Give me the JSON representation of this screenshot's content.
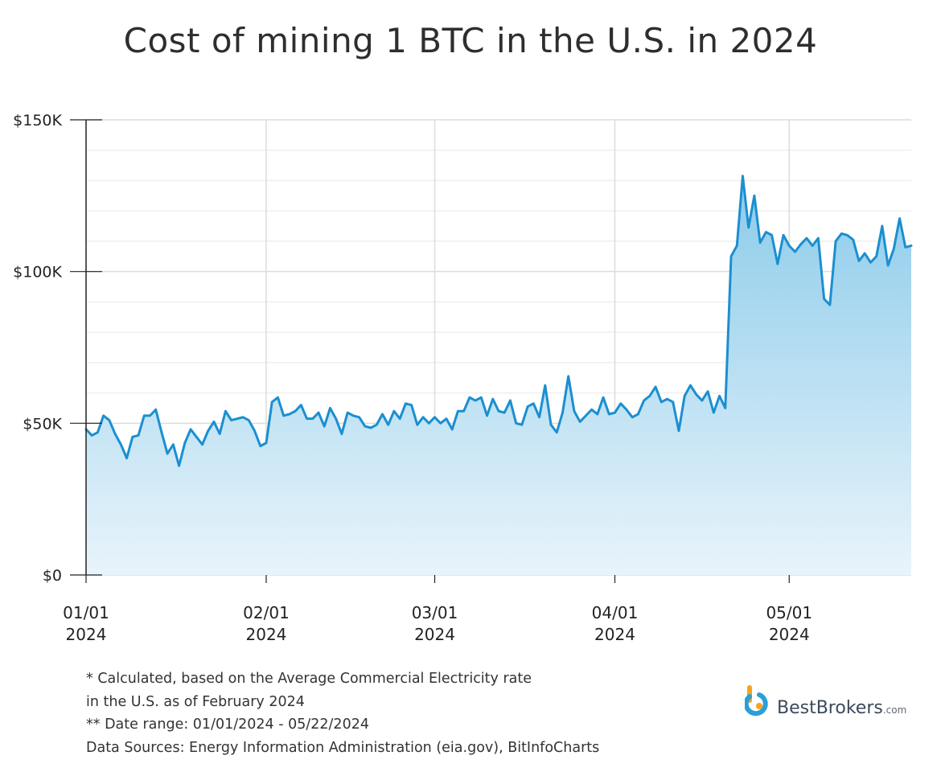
{
  "title": "Cost of mining 1 BTC in the U.S. in 2024",
  "colors": {
    "line": "#1b8fd0",
    "fill_top": "#8ccbea",
    "fill_bottom": "#e8f4fb",
    "grid": "#dcdcdc",
    "axis": "#222222"
  },
  "footnotes": [
    "* Calculated, based on the Average Commercial Electricity rate",
    "in the U.S. as of February 2024",
    "** Date range: 01/01/2024 - 05/22/2024",
    "Data Sources: Energy Information Administration (eia.gov), BitInfoCharts"
  ],
  "brand": {
    "name": "BestBrokers",
    "suffix": ".com",
    "icon": "bestbrokers-logo-icon"
  },
  "chart_data": {
    "type": "area",
    "title": "Cost of mining 1 BTC in the U.S. in 2024",
    "xlabel": "",
    "ylabel": "",
    "ylim": [
      0,
      150000
    ],
    "x_range": [
      "2024-01-01",
      "2024-05-22"
    ],
    "grid": true,
    "y_ticks": [
      {
        "value": 0,
        "label": "$0"
      },
      {
        "value": 50000,
        "label": "$50K"
      },
      {
        "value": 100000,
        "label": "$100K"
      },
      {
        "value": 150000,
        "label": "$150K"
      }
    ],
    "x_ticks": [
      {
        "date": "2024-01-01",
        "line1": "01/01",
        "line2": "2024"
      },
      {
        "date": "2024-02-01",
        "line1": "02/01",
        "line2": "2024"
      },
      {
        "date": "2024-03-01",
        "line1": "03/01",
        "line2": "2024"
      },
      {
        "date": "2024-04-01",
        "line1": "04/01",
        "line2": "2024"
      },
      {
        "date": "2024-05-01",
        "line1": "05/01",
        "line2": "2024"
      }
    ],
    "series": [
      {
        "x": [
          "2024-01-01",
          "2024-01-02",
          "2024-01-03",
          "2024-01-04",
          "2024-01-05",
          "2024-01-06",
          "2024-01-07",
          "2024-01-08",
          "2024-01-09",
          "2024-01-10",
          "2024-01-11",
          "2024-01-12",
          "2024-01-13",
          "2024-01-14",
          "2024-01-15",
          "2024-01-16",
          "2024-01-17",
          "2024-01-18",
          "2024-01-19",
          "2024-01-20",
          "2024-01-21",
          "2024-01-22",
          "2024-01-23",
          "2024-01-24",
          "2024-01-25",
          "2024-01-26",
          "2024-01-27",
          "2024-01-28",
          "2024-01-29",
          "2024-01-30",
          "2024-01-31",
          "2024-02-01",
          "2024-02-02",
          "2024-02-03",
          "2024-02-04",
          "2024-02-05",
          "2024-02-06",
          "2024-02-07",
          "2024-02-08",
          "2024-02-09",
          "2024-02-10",
          "2024-02-11",
          "2024-02-12",
          "2024-02-13",
          "2024-02-14",
          "2024-02-15",
          "2024-02-16",
          "2024-02-17",
          "2024-02-18",
          "2024-02-19",
          "2024-02-20",
          "2024-02-21",
          "2024-02-22",
          "2024-02-23",
          "2024-02-24",
          "2024-02-25",
          "2024-02-26",
          "2024-02-27",
          "2024-02-28",
          "2024-02-29",
          "2024-03-01",
          "2024-03-02",
          "2024-03-03",
          "2024-03-04",
          "2024-03-05",
          "2024-03-06",
          "2024-03-07",
          "2024-03-08",
          "2024-03-09",
          "2024-03-10",
          "2024-03-11",
          "2024-03-12",
          "2024-03-13",
          "2024-03-14",
          "2024-03-15",
          "2024-03-16",
          "2024-03-17",
          "2024-03-18",
          "2024-03-19",
          "2024-03-20",
          "2024-03-21",
          "2024-03-22",
          "2024-03-23",
          "2024-03-24",
          "2024-03-25",
          "2024-03-26",
          "2024-03-27",
          "2024-03-28",
          "2024-03-29",
          "2024-03-30",
          "2024-03-31",
          "2024-04-01",
          "2024-04-02",
          "2024-04-03",
          "2024-04-04",
          "2024-04-05",
          "2024-04-06",
          "2024-04-07",
          "2024-04-08",
          "2024-04-09",
          "2024-04-10",
          "2024-04-11",
          "2024-04-12",
          "2024-04-13",
          "2024-04-14",
          "2024-04-15",
          "2024-04-16",
          "2024-04-17",
          "2024-04-18",
          "2024-04-19",
          "2024-04-20",
          "2024-04-21",
          "2024-04-22",
          "2024-04-23",
          "2024-04-24",
          "2024-04-25",
          "2024-04-26",
          "2024-04-27",
          "2024-04-28",
          "2024-04-29",
          "2024-04-30",
          "2024-05-01",
          "2024-05-02",
          "2024-05-03",
          "2024-05-04",
          "2024-05-05",
          "2024-05-06",
          "2024-05-07",
          "2024-05-08",
          "2024-05-09",
          "2024-05-10",
          "2024-05-11",
          "2024-05-12",
          "2024-05-13",
          "2024-05-14",
          "2024-05-15",
          "2024-05-16",
          "2024-05-17",
          "2024-05-18",
          "2024-05-19",
          "2024-05-20",
          "2024-05-21",
          "2024-05-22"
        ],
        "values": [
          48000,
          46000,
          47000,
          52500,
          51000,
          46500,
          43000,
          38500,
          45500,
          46000,
          52500,
          52500,
          54500,
          47000,
          40000,
          43000,
          36000,
          43500,
          48000,
          45500,
          43000,
          47500,
          50500,
          46500,
          54000,
          51000,
          51500,
          52000,
          51000,
          47500,
          42500,
          43500,
          57000,
          58500,
          52500,
          53000,
          54000,
          56000,
          51500,
          51500,
          53500,
          49000,
          55000,
          51500,
          46500,
          53500,
          52500,
          52000,
          49000,
          48500,
          49500,
          53000,
          49500,
          54000,
          51500,
          56500,
          56000,
          49500,
          52000,
          50000,
          52000,
          50000,
          51500,
          48000,
          54000,
          54000,
          58500,
          57500,
          58500,
          52500,
          58000,
          54000,
          53500,
          57500,
          50000,
          49500,
          55500,
          56500,
          52000,
          62500,
          49500,
          47000,
          53500,
          65500,
          54000,
          50500,
          52500,
          54500,
          53000,
          58500,
          53000,
          53500,
          56500,
          54500,
          52000,
          53000,
          57500,
          59000,
          62000,
          57000,
          58000,
          57000,
          47500,
          59000,
          62500,
          59500,
          57500,
          60500,
          53500,
          59000,
          55000,
          105000,
          108500,
          131500,
          114500,
          125000,
          109500,
          113000,
          112000,
          102500,
          112000,
          108500,
          106500,
          109000,
          111000,
          108500,
          111000,
          91000,
          89000,
          110000,
          112500,
          112000,
          110500,
          103500,
          106000,
          103000,
          105000,
          115000,
          102000,
          107500,
          117500,
          108000,
          108500
        ]
      }
    ]
  }
}
